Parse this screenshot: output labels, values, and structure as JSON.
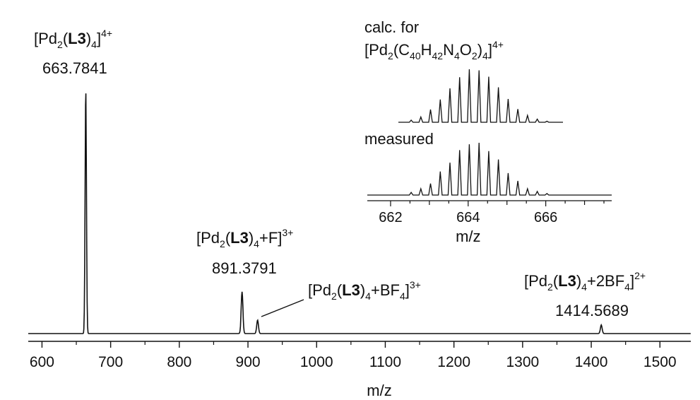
{
  "colors": {
    "trace": "#111111",
    "background": "#ffffff"
  },
  "chart_data": [
    {
      "type": "line",
      "xlabel": "m/z",
      "xlim": [
        580,
        1545
      ],
      "xticks": [
        "600",
        "700",
        "800",
        "900",
        "1000",
        "1100",
        "1200",
        "1300",
        "1400",
        "1500"
      ],
      "xtick_values": [
        600,
        700,
        800,
        900,
        1000,
        1100,
        1200,
        1300,
        1400,
        1500
      ],
      "ylim": [
        0,
        1
      ],
      "peaks": [
        {
          "x": 663.7841,
          "y": 1.0
        },
        {
          "x": 891.3791,
          "y": 0.17
        },
        {
          "x": 914.0,
          "y": 0.055
        },
        {
          "x": 1414.5689,
          "y": 0.035
        }
      ],
      "annotations": [
        {
          "id": "main",
          "pre": "[Pd",
          "sub1": "2",
          "mid": "(",
          "bold": "L3",
          "post": ")",
          "sub2": "4",
          "tail": "",
          "sub3": "",
          "close": "]",
          "sup": "4+",
          "value": "663.7841"
        },
        {
          "id": "f",
          "pre": "[Pd",
          "sub1": "2",
          "mid": "(",
          "bold": "L3",
          "post": ")",
          "sub2": "4",
          "tail": "+F",
          "sub3": "",
          "close": "]",
          "sup": "3+",
          "value": "891.3791"
        },
        {
          "id": "bf4",
          "pre": "[Pd",
          "sub1": "2",
          "mid": "(",
          "bold": "L3",
          "post": ")",
          "sub2": "4",
          "tail": "+BF",
          "sub3": "4",
          "close": "]",
          "sup": "3+",
          "value": ""
        },
        {
          "id": "2bf4",
          "pre": "[Pd",
          "sub1": "2",
          "mid": "(",
          "bold": "L3",
          "post": ")",
          "sub2": "4",
          "tail": "+2BF",
          "sub3": "4",
          "close": "]",
          "sup": "2+",
          "value": "1414.5689"
        }
      ]
    },
    {
      "type": "line",
      "xlabel": "m/z",
      "xlim": [
        661.4,
        667.7
      ],
      "xticks": [
        "662",
        "664",
        "666"
      ],
      "xtick_values": [
        662,
        664,
        666
      ],
      "calc_label_line1": "calc. for",
      "calc_formula": {
        "a": "[Pd",
        "a_sub": "2",
        "b": "(C",
        "b_sub": "40",
        "c": "H",
        "c_sub": "42",
        "d": "N",
        "d_sub": "4",
        "e": "O",
        "e_sub": "2",
        "f": ")",
        "f_sub": "4",
        "g": "]",
        "g_sup": "4+"
      },
      "measured_label": "measured",
      "series": [
        {
          "name": "calc. for",
          "x": [
            662.53,
            662.78,
            663.03,
            663.28,
            663.53,
            663.78,
            664.03,
            664.28,
            664.53,
            664.78,
            665.03,
            665.28,
            665.53,
            665.78,
            666.03
          ],
          "y": [
            0.04,
            0.1,
            0.24,
            0.43,
            0.64,
            0.85,
            1.0,
            0.98,
            0.86,
            0.66,
            0.44,
            0.25,
            0.13,
            0.06,
            0.02
          ]
        },
        {
          "name": "measured",
          "x": [
            662.53,
            662.78,
            663.03,
            663.28,
            663.53,
            663.78,
            664.03,
            664.28,
            664.53,
            664.78,
            665.03,
            665.28,
            665.53,
            665.78,
            666.03
          ],
          "y": [
            0.05,
            0.12,
            0.22,
            0.45,
            0.62,
            0.86,
            0.97,
            1.0,
            0.84,
            0.68,
            0.42,
            0.27,
            0.12,
            0.07,
            0.03
          ]
        }
      ]
    }
  ]
}
